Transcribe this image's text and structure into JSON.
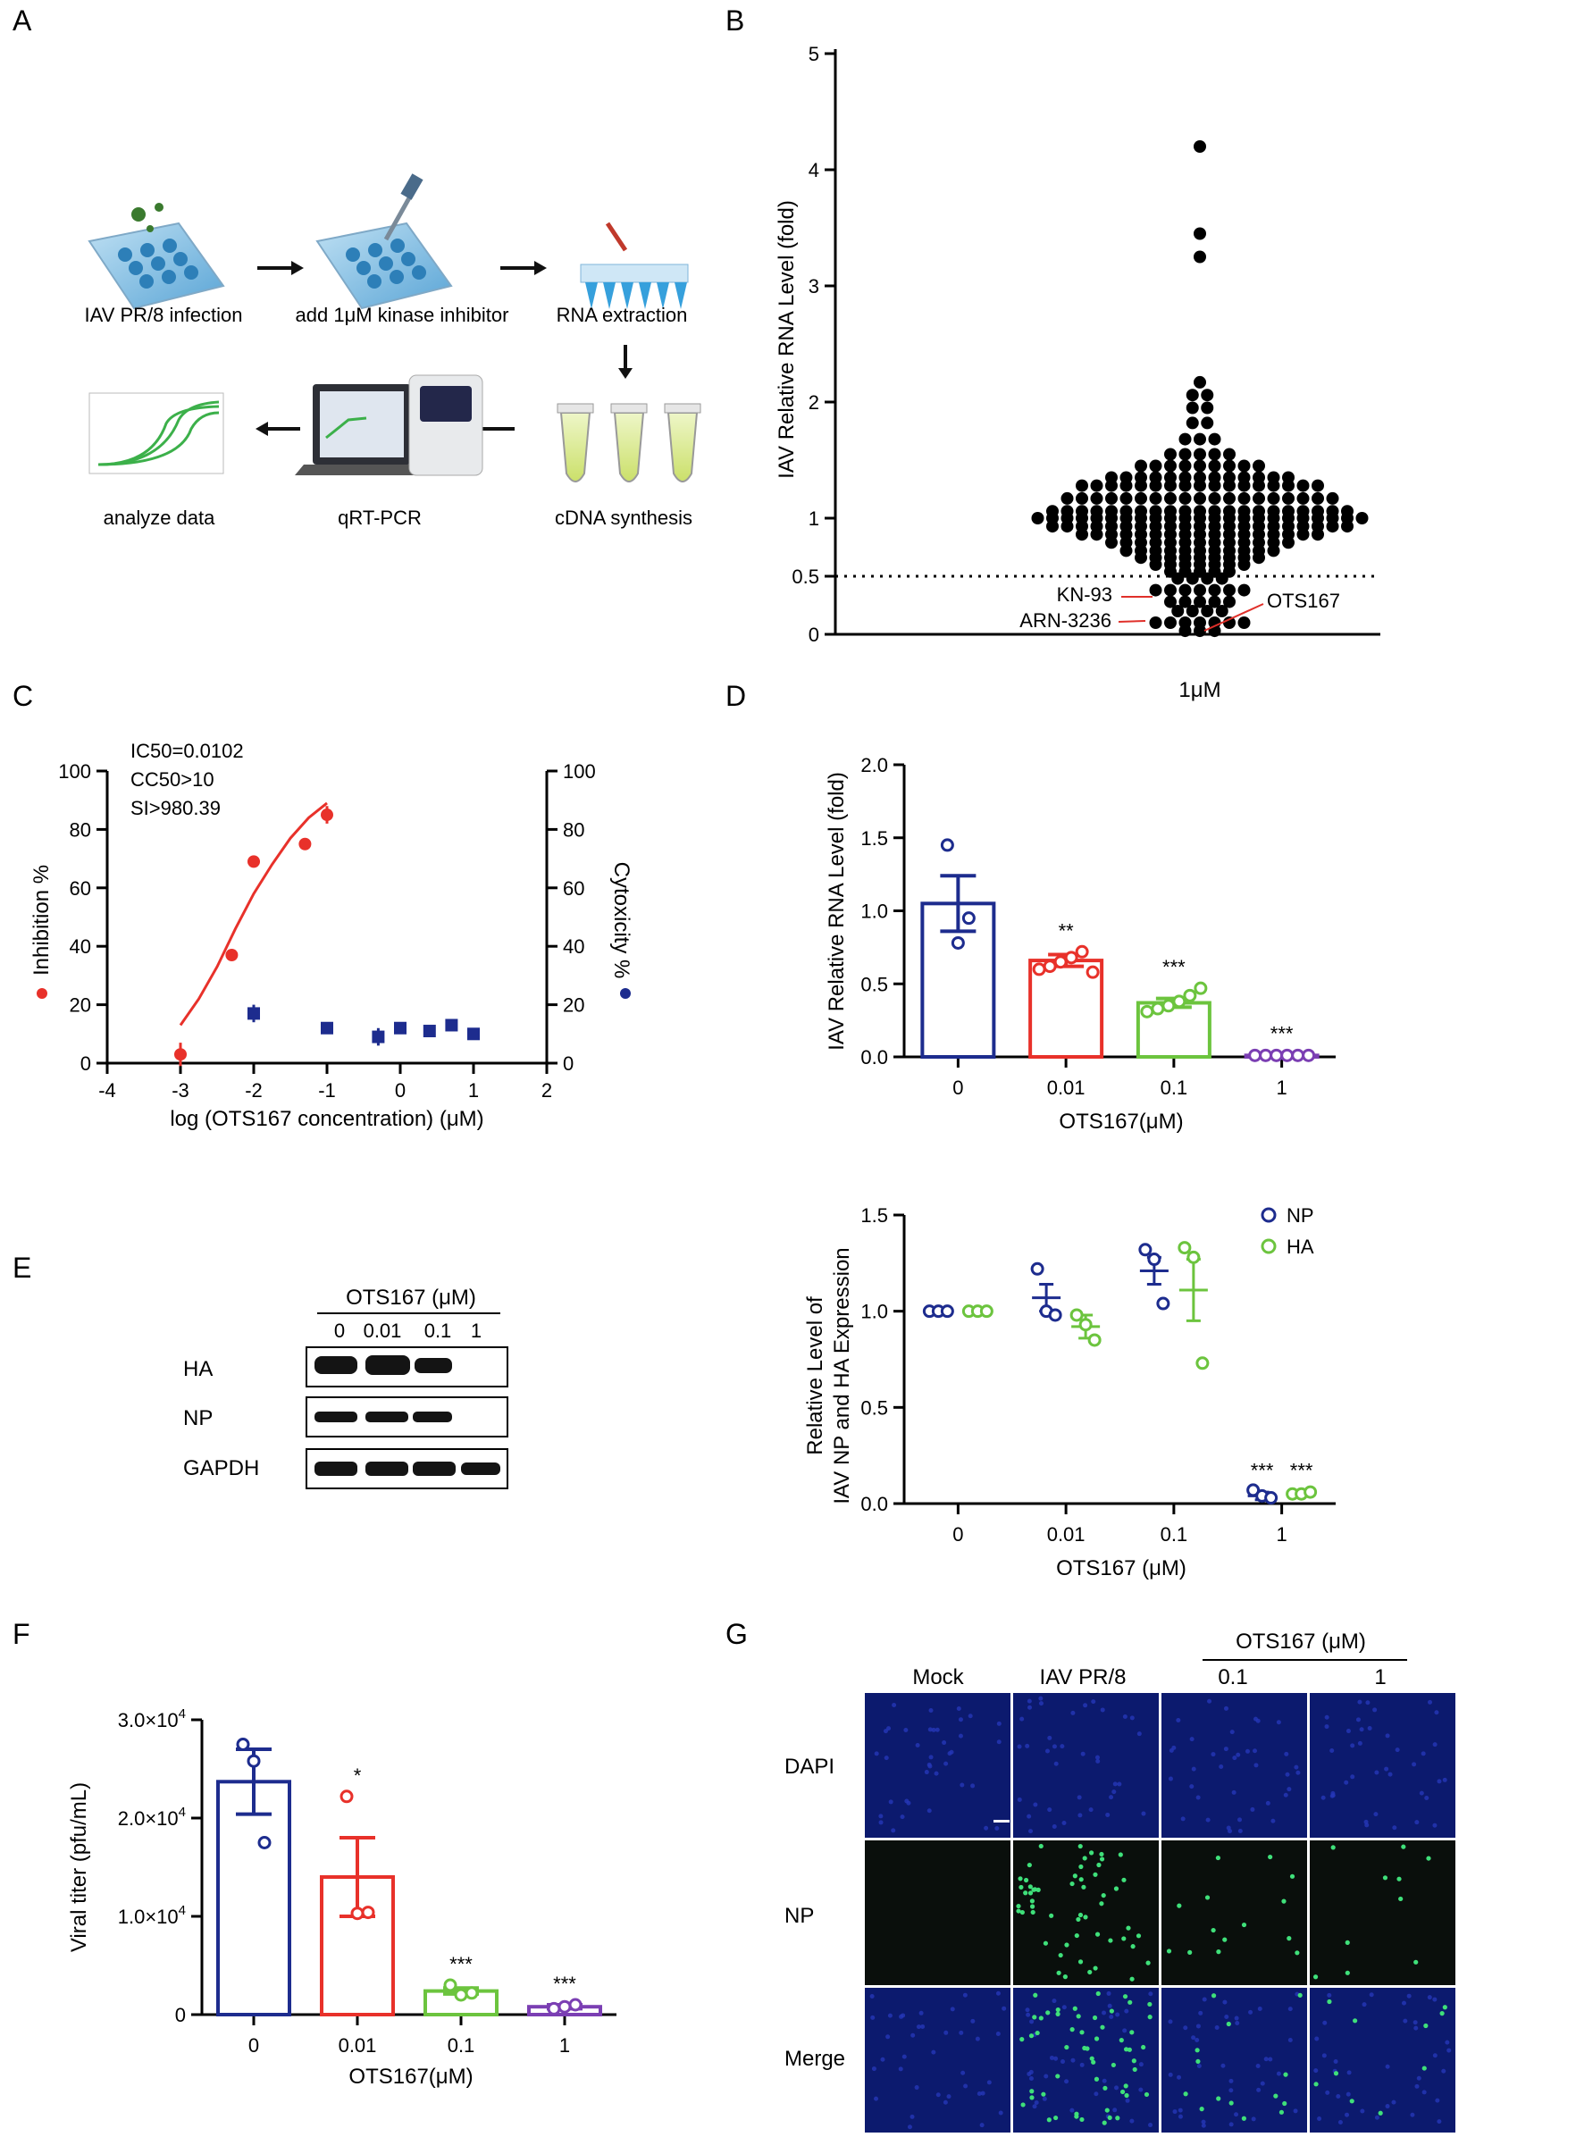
{
  "panels": {
    "A": {
      "letter": "A",
      "steps": [
        "IAV PR/8 infection",
        "add 1μM kinase inhibitor",
        "RNA extraction",
        "cDNA synthesis",
        "qRT-PCR",
        "analyze data"
      ],
      "colors": {
        "plate": "#3b8fc7",
        "tube_liquid": "#d8e86a",
        "curve": "#3cb04a"
      }
    },
    "B": {
      "letter": "B",
      "ylabel": "IAV Relative RNA Level (fold)",
      "xlabel": "1μM",
      "yticks": [
        "0",
        "0.5",
        "1",
        "2",
        "3",
        "4",
        "5"
      ],
      "threshold": 0.5,
      "labels": {
        "kn93": "KN-93",
        "arn": "ARN-3236",
        "ots": "OTS167"
      },
      "colors": {
        "dot": "#000000",
        "pointer": "#e0302a"
      }
    },
    "C": {
      "letter": "C",
      "stats": [
        "IC50=0.0102",
        "CC50>10",
        "SI>980.39"
      ],
      "xlabel": "log (OTS167 concentration) (μM)",
      "ylabel_left": "Inhibition %",
      "ylabel_right": "Cytoxicity %",
      "xticks": [
        "-4",
        "-3",
        "-2",
        "-1",
        "0",
        "1",
        "2"
      ],
      "yticks": [
        "0",
        "20",
        "40",
        "60",
        "80",
        "100"
      ],
      "colors": {
        "inhibition": "#e8312a",
        "cytotoxicity": "#1d2c8e"
      }
    },
    "D": {
      "letter": "D",
      "ylabel": "IAV Relative RNA Level (fold)",
      "xlabel": "OTS167(μM)",
      "categories": [
        "0",
        "0.01",
        "0.1",
        "1"
      ],
      "yticks": [
        "0.0",
        "0.5",
        "1.0",
        "1.5",
        "2.0"
      ],
      "significance": [
        "",
        "**",
        "***",
        "***"
      ],
      "colors": [
        "#1d2c8e",
        "#e8312a",
        "#6cc43e",
        "#7b3fb3"
      ]
    },
    "E": {
      "letter": "E",
      "blot_header": "OTS167 (μM)",
      "lanes": [
        "0",
        "0.01",
        "0.1",
        "1"
      ],
      "bands": [
        "HA",
        "NP",
        "GAPDH"
      ],
      "ylabel_line1": "Relative Level of",
      "ylabel_line2": "IAV NP and HA Expression",
      "xlabel": "OTS167 (μM)",
      "categories": [
        "0",
        "0.01",
        "0.1",
        "1"
      ],
      "yticks": [
        "0.0",
        "0.5",
        "1.0",
        "1.5"
      ],
      "legend": [
        "NP",
        "HA"
      ],
      "significance": [
        "***",
        "***"
      ],
      "colors": {
        "NP": "#1d2c8e",
        "HA": "#6cc43e"
      }
    },
    "F": {
      "letter": "F",
      "ylabel": "Viral titer (pfu/mL)",
      "xlabel": "OTS167(μM)",
      "categories": [
        "0",
        "0.01",
        "0.1",
        "1"
      ],
      "ytick_labels": [
        {
          "value": 0,
          "mant": "0",
          "exp": ""
        },
        {
          "value": 10000,
          "mant": "1.0×10",
          "exp": "4"
        },
        {
          "value": 20000,
          "mant": "2.0×10",
          "exp": "4"
        },
        {
          "value": 30000,
          "mant": "3.0×10",
          "exp": "4"
        }
      ],
      "significance": [
        "",
        "*",
        "***",
        "***"
      ],
      "colors": [
        "#1d2c8e",
        "#e8312a",
        "#6cc43e",
        "#7b3fb3"
      ]
    },
    "G": {
      "letter": "G",
      "group_header": "OTS167 (μM)",
      "columns": [
        "Mock",
        "IAV PR/8",
        "0.1",
        "1"
      ],
      "rows": [
        "DAPI",
        "NP",
        "Merge"
      ],
      "colors": {
        "dapi": "#0c1a6e",
        "np_bg": "#0a0f0c",
        "np_cell": "#3fe07a"
      }
    }
  },
  "chart_data": [
    {
      "panel": "B",
      "type": "scatter",
      "title": "",
      "xlabel": "1μM",
      "ylabel": "IAV Relative RNA Level (fold)",
      "ylim": [
        0,
        5
      ],
      "y_scale": "piecewise (0-1 stretched)",
      "threshold_line": 0.5,
      "rows": [
        {
          "y": 4.2,
          "n": 1
        },
        {
          "y": 3.45,
          "n": 1
        },
        {
          "y": 3.25,
          "n": 1
        },
        {
          "y": 2.17,
          "n": 1
        },
        {
          "y": 2.06,
          "n": 2
        },
        {
          "y": 1.95,
          "n": 2
        },
        {
          "y": 1.82,
          "n": 2
        },
        {
          "y": 1.68,
          "n": 3
        },
        {
          "y": 1.55,
          "n": 5
        },
        {
          "y": 1.45,
          "n": 9
        },
        {
          "y": 1.35,
          "n": 13
        },
        {
          "y": 1.28,
          "n": 17
        },
        {
          "y": 1.17,
          "n": 19
        },
        {
          "y": 1.06,
          "n": 21
        },
        {
          "y": 1.0,
          "n": 23
        },
        {
          "y": 0.93,
          "n": 21
        },
        {
          "y": 0.86,
          "n": 17
        },
        {
          "y": 0.79,
          "n": 13
        },
        {
          "y": 0.72,
          "n": 11
        },
        {
          "y": 0.66,
          "n": 9
        },
        {
          "y": 0.6,
          "n": 7
        },
        {
          "y": 0.54,
          "n": 5
        },
        {
          "y": 0.48,
          "n": 4
        },
        {
          "y": 0.38,
          "n": 7
        },
        {
          "y": 0.28,
          "n": 5
        },
        {
          "y": 0.2,
          "n": 4
        },
        {
          "y": 0.1,
          "n": 7
        },
        {
          "y": 0.03,
          "n": 3
        }
      ]
    },
    {
      "panel": "C",
      "type": "scatter",
      "xlabel": "log (OTS167 concentration) (μM)",
      "ylabel": "Inhibition %",
      "ylabel_right": "Cytoxicity %",
      "xlim": [
        -4,
        2
      ],
      "ylim": [
        0,
        100
      ],
      "series": [
        {
          "name": "Inhibition %",
          "x": [
            -3,
            -2.3,
            -2,
            -1.3,
            -1
          ],
          "y": [
            3,
            37,
            69,
            75,
            85
          ],
          "err": [
            4,
            1,
            2,
            2,
            3
          ]
        },
        {
          "name": "Cytoxicity %",
          "x": [
            -2,
            -1,
            -0.3,
            0,
            0.4,
            0.7,
            1
          ],
          "y": [
            17,
            12,
            9,
            12,
            11,
            13,
            10
          ],
          "err": [
            3,
            2,
            3,
            1,
            1,
            2,
            1
          ]
        }
      ],
      "fit_curve": {
        "name": "Inhibition fit",
        "x": [
          -3,
          -2.75,
          -2.5,
          -2.25,
          -2,
          -1.75,
          -1.5,
          -1.25,
          -1
        ],
        "y": [
          13,
          22,
          33,
          46,
          58,
          68,
          77,
          84,
          89
        ]
      }
    },
    {
      "panel": "D",
      "type": "bar",
      "categories": [
        "0",
        "0.01",
        "0.1",
        "1"
      ],
      "values": [
        1.05,
        0.66,
        0.37,
        0.01
      ],
      "sem": [
        0.19,
        0.04,
        0.03,
        0.005
      ],
      "points": [
        [
          1.45,
          0.78,
          0.95
        ],
        [
          0.6,
          0.62,
          0.65,
          0.68,
          0.72,
          0.58
        ],
        [
          0.31,
          0.33,
          0.35,
          0.38,
          0.42,
          0.47
        ],
        [
          0.01,
          0.01,
          0.01,
          0.01,
          0.01,
          0.01
        ]
      ],
      "xlabel": "OTS167(μM)",
      "ylabel": "IAV Relative RNA Level (fold)",
      "ylim": [
        0,
        2.0
      ]
    },
    {
      "panel": "E",
      "type": "scatter",
      "categories": [
        "0",
        "0.01",
        "0.1",
        "1"
      ],
      "series": [
        {
          "name": "NP",
          "mean": [
            1.0,
            1.07,
            1.21,
            0.04
          ],
          "sem": [
            0.0,
            0.07,
            0.07,
            0.02
          ],
          "points": [
            [
              1.0,
              1.0,
              1.0
            ],
            [
              1.22,
              1.0,
              0.98
            ],
            [
              1.32,
              1.27,
              1.04
            ],
            [
              0.07,
              0.04,
              0.03
            ]
          ]
        },
        {
          "name": "HA",
          "mean": [
            1.0,
            0.92,
            1.11,
            0.05
          ],
          "sem": [
            0.0,
            0.06,
            0.16,
            0.01
          ],
          "points": [
            [
              1.0,
              1.0,
              1.0
            ],
            [
              0.98,
              0.93,
              0.85
            ],
            [
              1.33,
              1.28,
              0.73
            ],
            [
              0.05,
              0.05,
              0.06
            ]
          ]
        }
      ],
      "xlabel": "OTS167 (μM)",
      "ylabel": "Relative Level of IAV NP and HA Expression",
      "ylim": [
        0,
        1.5
      ]
    },
    {
      "panel": "F",
      "type": "bar",
      "categories": [
        "0",
        "0.01",
        "0.1",
        "1"
      ],
      "values": [
        23700,
        14000,
        2400,
        800
      ],
      "sem": [
        3300,
        4000,
        300,
        200
      ],
      "points": [
        [
          27500,
          25800,
          17500
        ],
        [
          22200,
          10300,
          10400
        ],
        [
          3000,
          2000,
          2200
        ],
        [
          600,
          800,
          1000
        ]
      ],
      "xlabel": "OTS167(μM)",
      "ylabel": "Viral titer (pfu/mL)",
      "ylim": [
        0,
        30000
      ]
    }
  ]
}
